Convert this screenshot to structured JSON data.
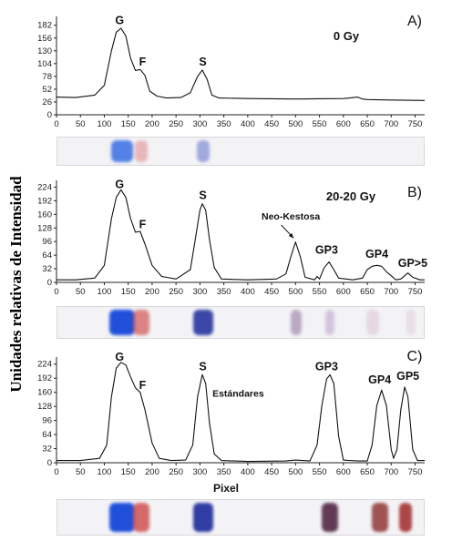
{
  "figure": {
    "ylabel": "Unidades relativas de Intensidad",
    "xlabel": "Pixel"
  },
  "chart_data": [
    {
      "type": "line",
      "panel_label": "A)",
      "condition": "0 Gy",
      "xlim": [
        0,
        770
      ],
      "xticks": [
        0,
        50,
        100,
        150,
        200,
        250,
        300,
        350,
        400,
        450,
        500,
        550,
        600,
        650,
        700,
        750
      ],
      "ylim": [
        0,
        200
      ],
      "yticks": [
        0,
        26,
        52,
        78,
        104,
        130,
        156,
        182
      ],
      "x": [
        0,
        40,
        80,
        100,
        115,
        125,
        135,
        145,
        155,
        165,
        175,
        185,
        195,
        210,
        230,
        260,
        280,
        295,
        305,
        315,
        325,
        340,
        400,
        500,
        600,
        630,
        640,
        650,
        700,
        770
      ],
      "y": [
        36,
        35,
        40,
        60,
        130,
        168,
        176,
        160,
        115,
        90,
        92,
        80,
        48,
        38,
        34,
        35,
        45,
        78,
        91,
        72,
        40,
        34,
        33,
        32,
        33,
        36,
        32,
        31,
        30,
        29
      ],
      "peak_labels": [
        {
          "text": "G",
          "x": 132,
          "y": 184
        },
        {
          "text": "F",
          "x": 180,
          "y": 100
        },
        {
          "text": "S",
          "x": 306,
          "y": 100
        }
      ],
      "bands": [
        {
          "x": 135,
          "color": "#1e5be0",
          "width": 24,
          "opacity": 0.75
        },
        {
          "x": 175,
          "color": "#d66060",
          "width": 14,
          "opacity": 0.4
        },
        {
          "x": 305,
          "color": "#4050c0",
          "width": 14,
          "opacity": 0.45
        }
      ]
    },
    {
      "type": "line",
      "panel_label": "B)",
      "condition": "20-20 Gy",
      "xlim": [
        0,
        770
      ],
      "xticks": [
        0,
        50,
        100,
        150,
        200,
        250,
        300,
        350,
        400,
        450,
        500,
        550,
        600,
        650,
        700,
        750
      ],
      "ylim": [
        0,
        240
      ],
      "yticks": [
        0,
        32,
        64,
        96,
        128,
        160,
        192,
        224
      ],
      "x": [
        0,
        40,
        80,
        100,
        115,
        125,
        135,
        145,
        155,
        165,
        175,
        185,
        200,
        220,
        250,
        280,
        290,
        300,
        305,
        312,
        320,
        330,
        345,
        400,
        460,
        480,
        490,
        500,
        510,
        520,
        540,
        545,
        550,
        560,
        570,
        580,
        590,
        620,
        640,
        650,
        660,
        670,
        680,
        690,
        710,
        720,
        735,
        745,
        760,
        770
      ],
      "y": [
        6,
        6,
        10,
        40,
        150,
        200,
        218,
        200,
        150,
        118,
        120,
        90,
        40,
        14,
        8,
        30,
        100,
        170,
        185,
        170,
        100,
        35,
        8,
        6,
        8,
        20,
        60,
        95,
        60,
        12,
        6,
        14,
        8,
        35,
        48,
        30,
        10,
        6,
        10,
        30,
        38,
        40,
        38,
        25,
        6,
        8,
        22,
        12,
        6,
        6
      ],
      "peak_labels": [
        {
          "text": "G",
          "x": 132,
          "y": 222
        },
        {
          "text": "F",
          "x": 180,
          "y": 128
        },
        {
          "text": "S",
          "x": 306,
          "y": 196
        },
        {
          "text": "Neo-Kestosa",
          "x": 490,
          "y": 148
        },
        {
          "text": "GP3",
          "x": 565,
          "y": 68
        },
        {
          "text": "GP4",
          "x": 670,
          "y": 58
        },
        {
          "text": "GP>5",
          "x": 745,
          "y": 36
        }
      ],
      "annotation_arrow": {
        "from_x": 470,
        "from_y": 135,
        "to_x": 496,
        "to_y": 104
      },
      "bands": [
        {
          "x": 135,
          "color": "#0a3fd8",
          "width": 28,
          "opacity": 0.9
        },
        {
          "x": 175,
          "color": "#cc3b3b",
          "width": 18,
          "opacity": 0.6
        },
        {
          "x": 305,
          "color": "#1b2a9a",
          "width": 22,
          "opacity": 0.85
        },
        {
          "x": 500,
          "color": "#6a3a7a",
          "width": 12,
          "opacity": 0.4
        },
        {
          "x": 570,
          "color": "#8a5aa8",
          "width": 10,
          "opacity": 0.3
        },
        {
          "x": 660,
          "color": "#c08aa8",
          "width": 14,
          "opacity": 0.25
        },
        {
          "x": 740,
          "color": "#c08aa8",
          "width": 10,
          "opacity": 0.2
        }
      ]
    },
    {
      "type": "line",
      "panel_label": "C)",
      "condition": "Estándares",
      "xlim": [
        0,
        770
      ],
      "xticks": [
        0,
        50,
        100,
        150,
        200,
        250,
        300,
        350,
        400,
        450,
        500,
        550,
        600,
        650,
        700,
        750
      ],
      "ylim": [
        0,
        240
      ],
      "yticks": [
        0,
        32,
        64,
        96,
        128,
        160,
        192,
        224
      ],
      "x": [
        0,
        50,
        90,
        105,
        115,
        125,
        135,
        145,
        155,
        165,
        175,
        185,
        200,
        215,
        240,
        270,
        285,
        295,
        305,
        312,
        320,
        330,
        345,
        400,
        480,
        500,
        530,
        545,
        555,
        565,
        572,
        580,
        590,
        600,
        630,
        650,
        660,
        670,
        680,
        690,
        700,
        705,
        712,
        720,
        728,
        735,
        745,
        755,
        770
      ],
      "y": [
        5,
        5,
        10,
        40,
        150,
        215,
        228,
        222,
        195,
        170,
        160,
        120,
        45,
        10,
        5,
        6,
        40,
        150,
        200,
        180,
        90,
        20,
        5,
        3,
        4,
        6,
        4,
        40,
        130,
        190,
        200,
        180,
        60,
        6,
        4,
        4,
        40,
        130,
        165,
        130,
        30,
        10,
        30,
        120,
        172,
        150,
        30,
        5,
        5
      ],
      "peak_labels": [
        {
          "text": "G",
          "x": 132,
          "y": 232
        },
        {
          "text": "F",
          "x": 180,
          "y": 168
        },
        {
          "text": "S",
          "x": 306,
          "y": 210
        },
        {
          "text": "GP3",
          "x": 565,
          "y": 210
        },
        {
          "text": "GP4",
          "x": 676,
          "y": 180
        },
        {
          "text": "GP5",
          "x": 735,
          "y": 188
        },
        {
          "text": "Estándares",
          "x": 380,
          "y": 150
        }
      ],
      "bands": [
        {
          "x": 135,
          "color": "#0a3fd8",
          "width": 28,
          "opacity": 0.9
        },
        {
          "x": 175,
          "color": "#cc3b3b",
          "width": 18,
          "opacity": 0.75
        },
        {
          "x": 305,
          "color": "#1b2a9a",
          "width": 22,
          "opacity": 0.9
        },
        {
          "x": 570,
          "color": "#4a1a3a",
          "width": 18,
          "opacity": 0.85
        },
        {
          "x": 675,
          "color": "#8a2a2a",
          "width": 18,
          "opacity": 0.8
        },
        {
          "x": 728,
          "color": "#a02828",
          "width": 14,
          "opacity": 0.85
        }
      ]
    }
  ]
}
